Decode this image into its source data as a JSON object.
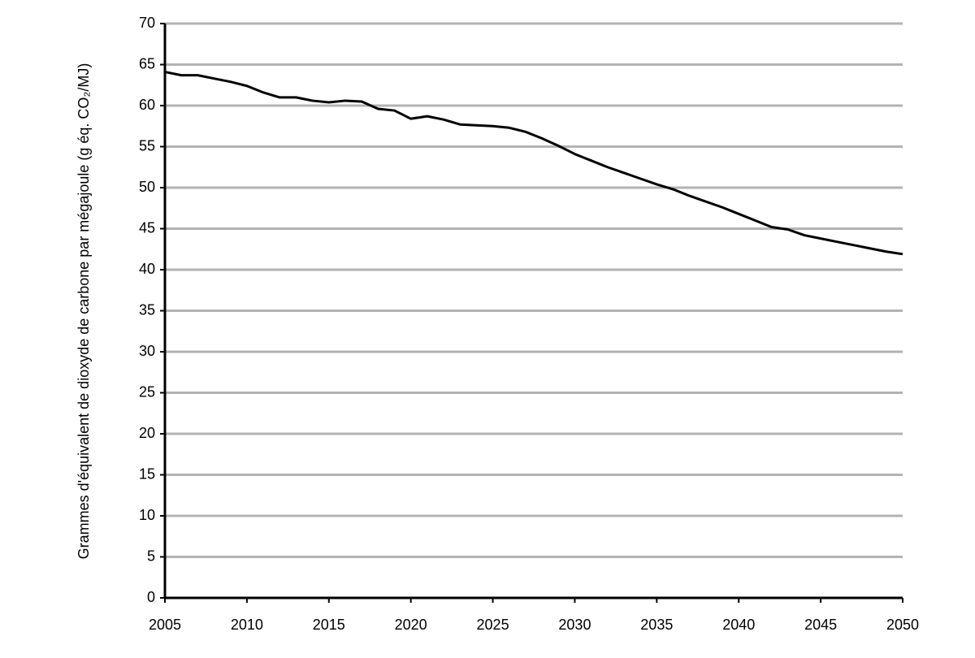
{
  "chart_data": {
    "type": "line",
    "ylabel": "Grammes d'équivalent de dioxyde de carbone par mégajoule  (g éq. CO₂/MJ)",
    "x": [
      2005,
      2006,
      2007,
      2008,
      2009,
      2010,
      2011,
      2012,
      2013,
      2014,
      2015,
      2016,
      2017,
      2018,
      2019,
      2020,
      2021,
      2022,
      2023,
      2024,
      2025,
      2026,
      2027,
      2028,
      2029,
      2030,
      2031,
      2032,
      2033,
      2034,
      2035,
      2036,
      2037,
      2038,
      2039,
      2040,
      2041,
      2042,
      2043,
      2044,
      2045,
      2046,
      2047,
      2048,
      2049,
      2050
    ],
    "series": [
      {
        "color": "#000000",
        "values": [
          64.1,
          63.7,
          63.7,
          63.3,
          62.9,
          62.4,
          61.6,
          61.0,
          61.0,
          60.6,
          60.4,
          60.6,
          60.5,
          59.6,
          59.4,
          58.4,
          58.7,
          58.3,
          57.7,
          57.6,
          57.5,
          57.3,
          56.8,
          56.0,
          55.1,
          54.1,
          53.3,
          52.5,
          51.8,
          51.1,
          50.4,
          49.8,
          49.0,
          48.3,
          47.6,
          46.8,
          46.0,
          45.2,
          44.9,
          44.2,
          43.8,
          43.4,
          43.0,
          42.6,
          42.2,
          41.9
        ]
      }
    ],
    "xlim": [
      2005,
      2050
    ],
    "xticks": [
      2005,
      2010,
      2015,
      2020,
      2025,
      2030,
      2035,
      2040,
      2045,
      2050
    ],
    "ylim": [
      0,
      70
    ],
    "yticks": [
      0,
      5,
      10,
      15,
      20,
      25,
      30,
      35,
      40,
      45,
      50,
      55,
      60,
      65,
      70
    ],
    "grid": true
  }
}
